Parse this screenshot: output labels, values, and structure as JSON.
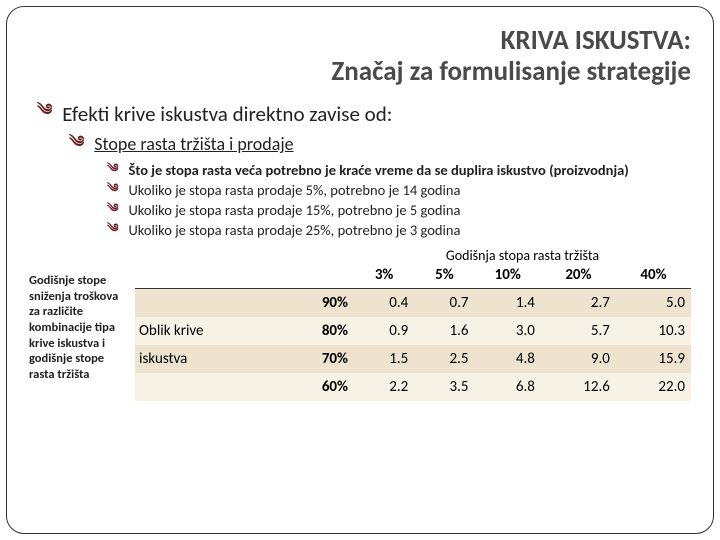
{
  "title": {
    "line1": "KRIVA ISKUSTVA:",
    "line2": "Značaj za formulisanje strategije"
  },
  "bullets": {
    "lvl1": "Efekti krive iskustva direktno zavise od:",
    "lvl2": "Stope rasta tržišta i prodaje",
    "lvl3": [
      "Što je stopa rasta veća potrebno je kraće vreme da se duplira iskustvo (proizvodnja)",
      "Ukoliko je stopa rasta prodaje 5%, potrebno je 14 godina",
      "Ukoliko je stopa rasta prodaje 15%, potrebno je 5 godina",
      "Ukoliko je stopa rasta prodaje 25%, potrebno je 3 godina"
    ]
  },
  "sideNote": "Godišnje stope sniženja troškova za različite kombinacije tipa krive iskustva i godišnje stope rasta tržišta",
  "table": {
    "superHeader": "Godišnja stopa rasta tržišta",
    "rowGroupLabel1": "Oblik krive",
    "rowGroupLabel2": " iskustva",
    "colHeaders": [
      "3%",
      "5%",
      "10%",
      "20%",
      "40%"
    ],
    "rows": [
      {
        "shape": "90%",
        "cells": [
          "0.4",
          "0.7",
          "1.4",
          "2.7",
          "5.0"
        ]
      },
      {
        "shape": "80%",
        "cells": [
          "0.9",
          "1.6",
          "3.0",
          "5.7",
          "10.3"
        ]
      },
      {
        "shape": "70%",
        "cells": [
          "1.5",
          "2.5",
          "4.8",
          "9.0",
          "15.9"
        ]
      },
      {
        "shape": "60%",
        "cells": [
          "2.2",
          "3.5",
          "6.8",
          "12.6",
          "22.0"
        ]
      }
    ],
    "styling": {
      "row_odd_bg": "#ede3cf",
      "row_even_bg": "#f7f2e6",
      "header_border": "#333333",
      "font_size_cells": 15,
      "font_size_header": 15
    }
  },
  "colors": {
    "bullet_icon": "#6b1b1b",
    "title_color": "#4a4a4a",
    "text_color": "#222222",
    "frame_border": "#333333"
  }
}
